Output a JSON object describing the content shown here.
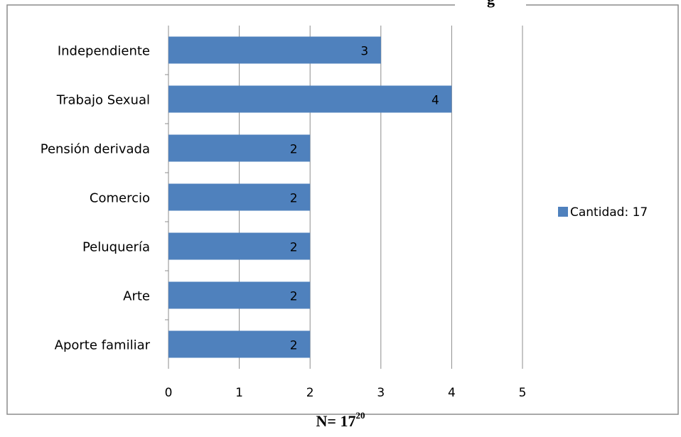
{
  "chart_data": {
    "type": "bar",
    "orientation": "horizontal",
    "title": "g",
    "categories": [
      "Independiente",
      "Trabajo Sexual",
      "Pensión derivada",
      "Comercio",
      "Peluquería",
      "Arte",
      "Aporte familiar"
    ],
    "series": [
      {
        "name": "Cantidad: 17",
        "values": [
          3,
          4,
          2,
          2,
          2,
          2,
          2
        ],
        "color": "#4f81bd"
      }
    ],
    "xlim": [
      0,
      5
    ],
    "xticks": [
      "0",
      "1",
      "2",
      "3",
      "4",
      "5"
    ],
    "grid": true,
    "legend": "right",
    "data_labels": true
  },
  "footer": {
    "main": "N= 17",
    "superscript": "20"
  }
}
